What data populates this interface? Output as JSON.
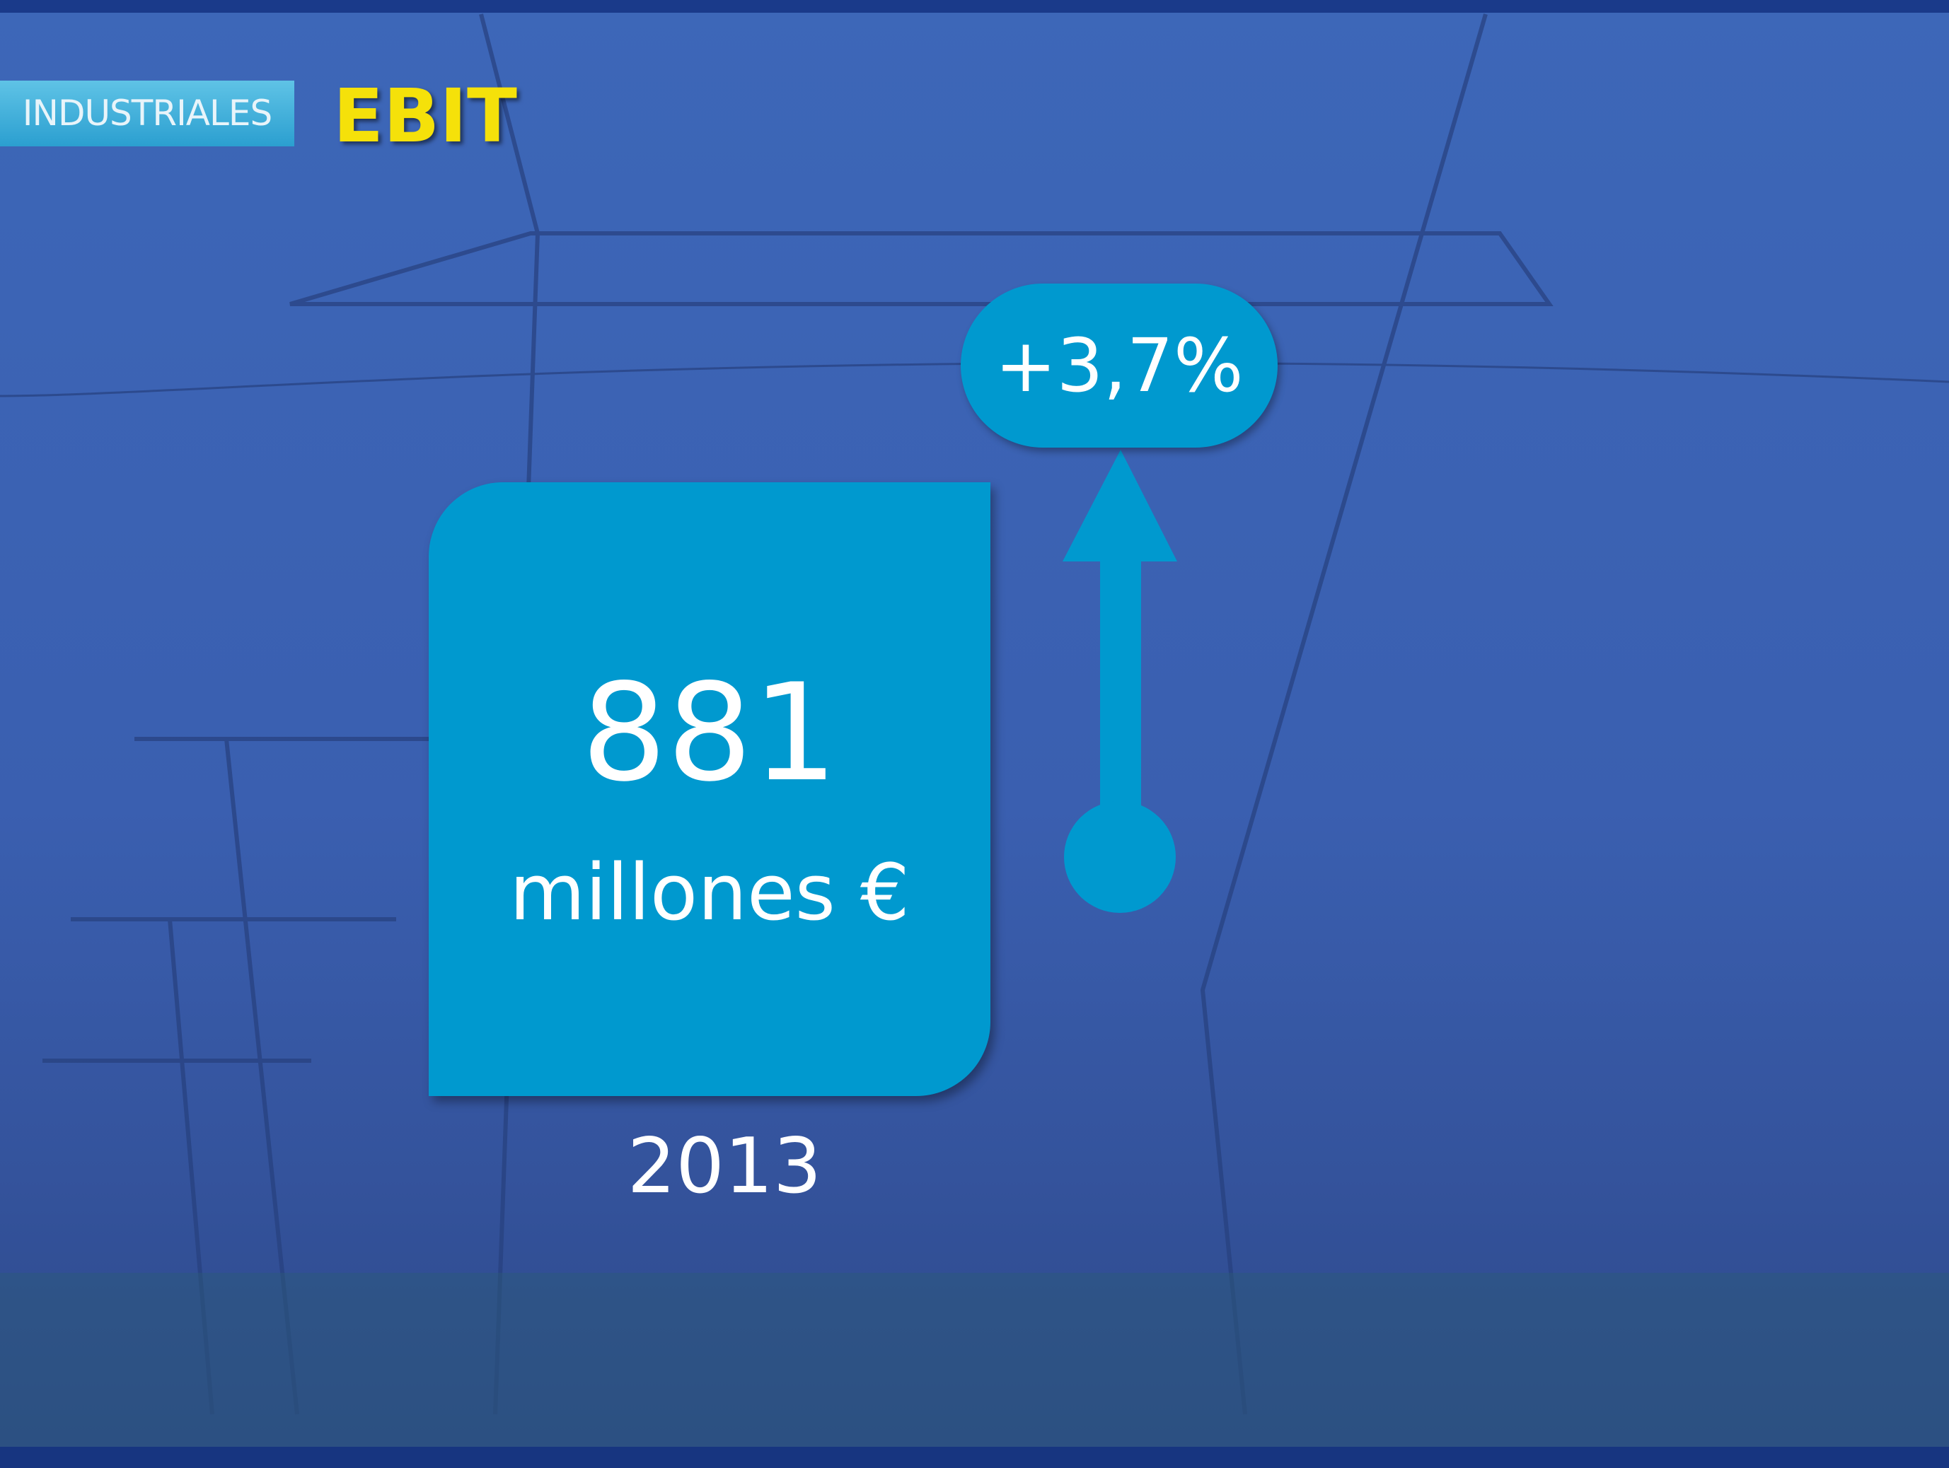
{
  "header": {
    "section": "INDUSTRIALES",
    "title": "EBIT"
  },
  "metric": {
    "value": "881",
    "unit": "millones €",
    "year": "2013",
    "change": "+3,7%"
  }
}
